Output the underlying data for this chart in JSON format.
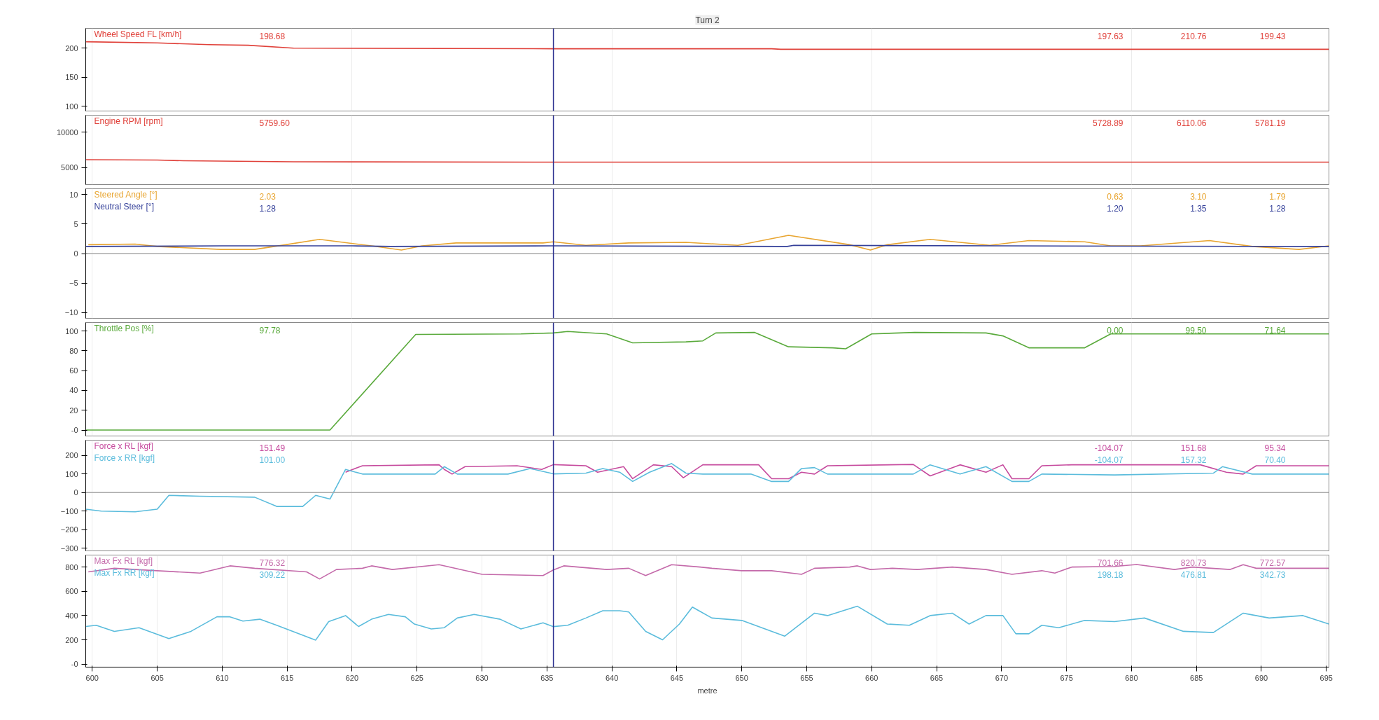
{
  "chart_data": [
    {
      "type": "line",
      "title": "Turn 2",
      "xlim": [
        599.5,
        695.2
      ],
      "ylim": [
        92,
        234
      ],
      "yticks": [
        100,
        150,
        200
      ],
      "tick_labels": "y",
      "grid": "x",
      "series": [
        {
          "name": "Wheel Speed FL [km/h]",
          "color": "#e0413a",
          "x": [
            599.5,
            605,
            609,
            612,
            615.5,
            635.5,
            652.3,
            653,
            695.2
          ],
          "values": [
            211,
            209,
            206,
            205,
            200,
            199,
            199,
            198,
            198
          ]
        }
      ],
      "annotations": [
        "198.68",
        "197.63",
        "210.76",
        "199.43"
      ],
      "ref_lines": [
        {
          "axis": "x",
          "value": 635.5,
          "color": "#2a2f8f"
        }
      ]
    },
    {
      "type": "line",
      "xlim": [
        599.5,
        695.2
      ],
      "ylim": [
        2560,
        12440
      ],
      "yticks": [
        5000,
        10000
      ],
      "tick_labels": "y",
      "grid": "x",
      "series": [
        {
          "name": "Engine RPM [rpm]",
          "color": "#e0413a",
          "x": [
            599.5,
            605,
            607,
            615.5,
            635.5,
            695.2
          ],
          "values": [
            6100,
            6050,
            5950,
            5800,
            5750,
            5750
          ]
        }
      ],
      "annotations": [
        "5759.60",
        "5728.89",
        "6110.06",
        "5781.19"
      ],
      "ref_lines": [
        {
          "axis": "x",
          "value": 635.5,
          "color": "#2a2f8f"
        }
      ]
    },
    {
      "type": "line",
      "xlim": [
        599.5,
        695.2
      ],
      "ylim": [
        -11,
        11
      ],
      "yticks": [
        -10,
        -5,
        0,
        5,
        10
      ],
      "tick_labels": "y",
      "grid": "x",
      "series": [
        {
          "name": "Steered Angle [°]",
          "color": "#e8a531",
          "x": [
            599.7,
            603.3,
            605,
            609.9,
            612.5,
            614.9,
            617.5,
            621.5,
            623.8,
            625.4,
            628,
            634.7,
            635.5,
            638,
            641.3,
            645.7,
            649.7,
            653.6,
            658.3,
            659.9,
            661.2,
            664.5,
            669.1,
            672.1,
            676.4,
            678.4,
            680.7,
            686,
            689.3,
            692.9,
            695.2
          ],
          "values": [
            1.5,
            1.6,
            1.2,
            0.7,
            0.7,
            1.5,
            2.4,
            1.3,
            0.6,
            1.3,
            1.8,
            1.8,
            2.0,
            1.4,
            1.8,
            1.9,
            1.4,
            3.1,
            1.5,
            0.6,
            1.5,
            2.4,
            1.4,
            2.2,
            2.0,
            1.3,
            1.3,
            2.2,
            1.2,
            0.7,
            1.3
          ]
        },
        {
          "name": "Neutral Steer [°]",
          "color": "#333f99",
          "x": [
            599.5,
            610,
            620,
            623,
            635.5,
            653,
            653.5,
            654,
            670,
            695.2
          ],
          "values": [
            1.2,
            1.3,
            1.3,
            1.2,
            1.3,
            1.2,
            1.2,
            1.4,
            1.3,
            1.2
          ]
        }
      ],
      "annotations": [
        "2.03",
        "0.63",
        "3.10",
        "1.79",
        "1.28",
        "1.20",
        "1.35",
        "1.28"
      ],
      "ref_lines": [
        {
          "axis": "y",
          "value": 0,
          "color": "#aaaaaa"
        },
        {
          "axis": "x",
          "value": 635.5,
          "color": "#2a2f8f"
        }
      ]
    },
    {
      "type": "line",
      "xlim": [
        599.5,
        695.2
      ],
      "ylim": [
        -6,
        108.5
      ],
      "yticks": [
        {
          "value": 0,
          "label": "-0"
        },
        20,
        40,
        60,
        80,
        100
      ],
      "tick_labels": "y",
      "grid": "x",
      "series": [
        {
          "name": "Throttle Pos [%]",
          "color": "#5aaa3c",
          "x": [
            599.5,
            618.3,
            624.9,
            633,
            635.5,
            636.6,
            639.6,
            641.6,
            645.7,
            647,
            648,
            651,
            653.6,
            657,
            658,
            660,
            663.3,
            668.8,
            670.1,
            672.1,
            676.4,
            678.4,
            695.2
          ],
          "values": [
            0,
            0,
            96.5,
            97,
            98,
            99.5,
            97,
            88,
            89,
            90,
            98,
            98.5,
            84,
            83,
            82,
            97,
            98.5,
            98,
            95,
            83,
            83,
            97,
            97
          ]
        }
      ],
      "annotations": [
        "97.78",
        "0.00",
        "99.50",
        "71.64"
      ],
      "ref_lines": [
        {
          "axis": "x",
          "value": 635.5,
          "color": "#2a2f8f"
        }
      ]
    },
    {
      "type": "line",
      "xlim": [
        599.5,
        695.2
      ],
      "ylim": [
        -315,
        283
      ],
      "yticks": [
        -300,
        -200,
        -100,
        0,
        100,
        200
      ],
      "tick_labels": "y",
      "grid": "x",
      "series": [
        {
          "name": "Force x RL [kgf]",
          "color": "#c64b9e",
          "x": [
            619.5,
            620.8,
            626.7,
            627.1,
            627.7,
            628.7,
            632.7,
            634.6,
            635.5,
            638,
            638.9,
            640.9,
            641.6,
            643.2,
            644.6,
            645.5,
            647,
            651.3,
            652.3,
            653.6,
            654.6,
            655.6,
            656.6,
            663.2,
            664.5,
            666.8,
            668.8,
            670.1,
            670.8,
            672.1,
            673.1,
            675.4,
            685.3,
            687.3,
            688.6,
            689.6,
            695.2
          ],
          "values": [
            110,
            145,
            150,
            125,
            100,
            140,
            145,
            125,
            151,
            145,
            110,
            140,
            75,
            150,
            140,
            80,
            150,
            150,
            75,
            75,
            110,
            100,
            145,
            152,
            90,
            150,
            110,
            150,
            75,
            75,
            145,
            150,
            150,
            110,
            100,
            145,
            145
          ]
        },
        {
          "name": "Force x RR [kgf]",
          "color": "#5bbcdc",
          "x": [
            599.5,
            600.7,
            603.3,
            605,
            605.9,
            608.3,
            612.5,
            614.2,
            616.2,
            617.2,
            618.3,
            619.5,
            620.8,
            626.4,
            627.1,
            628.1,
            632,
            633.7,
            635.5,
            638,
            639.3,
            640.6,
            641.6,
            642.9,
            644.6,
            645.7,
            647,
            650.7,
            652.3,
            653.6,
            654.6,
            655.6,
            656.6,
            663.2,
            664.5,
            666.8,
            668.8,
            670.8,
            672.1,
            673.1,
            678.7,
            686.3,
            687,
            689.3,
            695.2
          ],
          "values": [
            -90,
            -100,
            -104,
            -90,
            -15,
            -20,
            -25,
            -75,
            -75,
            -15,
            -35,
            125,
            100,
            100,
            140,
            100,
            100,
            130,
            101,
            105,
            130,
            110,
            60,
            110,
            157,
            105,
            100,
            100,
            60,
            60,
            130,
            135,
            100,
            100,
            150,
            100,
            140,
            60,
            60,
            100,
            95,
            105,
            140,
            100,
            100
          ]
        }
      ],
      "annotations": [
        "151.49",
        "-104.07",
        "151.68",
        "95.34",
        "101.00",
        "-104.07",
        "157.32",
        "70.40"
      ],
      "ref_lines": [
        {
          "axis": "y",
          "value": 0,
          "color": "#aaaaaa"
        },
        {
          "axis": "x",
          "value": 635.5,
          "color": "#2a2f8f"
        }
      ]
    },
    {
      "type": "line",
      "xlim": [
        599.5,
        695.2
      ],
      "ylim": [
        -25,
        899
      ],
      "yticks": [
        {
          "value": 0,
          "label": "-0"
        },
        200,
        400,
        600,
        800
      ],
      "xticks": [
        600,
        605,
        610,
        615,
        620,
        625,
        630,
        635,
        640,
        645,
        650,
        655,
        660,
        665,
        670,
        675,
        680,
        685,
        690,
        695
      ],
      "xlabel": "metre",
      "grid": "x",
      "series": [
        {
          "name": "Max Fx RL [kgf]",
          "color": "#c46aaa",
          "x": [
            599.7,
            601.7,
            605,
            608.3,
            610.6,
            612.5,
            616.5,
            617.5,
            618.8,
            620.8,
            621.5,
            623.1,
            626.7,
            630,
            634.7,
            635.5,
            636.3,
            639.6,
            641.3,
            642.6,
            644.6,
            646.8,
            647.7,
            650,
            652.3,
            654.6,
            655.6,
            658.3,
            658.9,
            659.9,
            661.6,
            663.5,
            666.2,
            668.8,
            670.8,
            673.1,
            674.1,
            675.4,
            678.7,
            680.4,
            683.3,
            684.7,
            687.6,
            688.6,
            689.6,
            695.2
          ],
          "values": [
            760,
            790,
            770,
            750,
            810,
            790,
            760,
            702,
            780,
            790,
            810,
            780,
            820,
            740,
            730,
            776,
            810,
            780,
            790,
            730,
            820,
            800,
            790,
            770,
            770,
            740,
            790,
            800,
            810,
            780,
            790,
            780,
            800,
            780,
            740,
            770,
            750,
            800,
            805,
            821,
            780,
            800,
            780,
            820,
            790,
            790
          ]
        },
        {
          "name": "Max Fx RR [kgf]",
          "color": "#5bbcdc",
          "x": [
            599.5,
            600.3,
            601.7,
            603.6,
            605.9,
            607.6,
            609.6,
            610.6,
            611.6,
            612.9,
            614.2,
            617.2,
            618.2,
            619.5,
            620.5,
            621.5,
            622.8,
            624.1,
            624.8,
            626.1,
            627.1,
            628.1,
            629.4,
            631.4,
            633,
            634.7,
            635.5,
            636.6,
            638,
            639.3,
            640.6,
            641.3,
            642.6,
            643.9,
            645.2,
            646.2,
            646.7,
            647.7,
            650,
            653.3,
            655.6,
            656.6,
            658.9,
            661.2,
            662.9,
            664.5,
            666.2,
            667.5,
            668.8,
            670.1,
            671.1,
            672.1,
            673.1,
            674.4,
            676.4,
            678.7,
            681,
            684,
            686.3,
            688.6,
            690.6,
            693.2,
            695.2
          ],
          "values": [
            310,
            320,
            270,
            300,
            210,
            270,
            390,
            390,
            355,
            370,
            320,
            198,
            350,
            400,
            310,
            370,
            410,
            390,
            330,
            290,
            300,
            380,
            410,
            370,
            290,
            340,
            309,
            320,
            380,
            440,
            440,
            430,
            270,
            200,
            330,
            470,
            440,
            380,
            360,
            230,
            420,
            400,
            477,
            330,
            320,
            400,
            420,
            330,
            400,
            400,
            250,
            250,
            320,
            300,
            360,
            350,
            380,
            270,
            260,
            420,
            380,
            400,
            330
          ]
        }
      ],
      "annotations": [
        "776.32",
        "701.66",
        "820.73",
        "772.57",
        "309.22",
        "198.18",
        "476.81",
        "342.73"
      ],
      "ref_lines": [
        {
          "axis": "x",
          "value": 635.5,
          "color": "#2a2f8f"
        }
      ]
    }
  ]
}
